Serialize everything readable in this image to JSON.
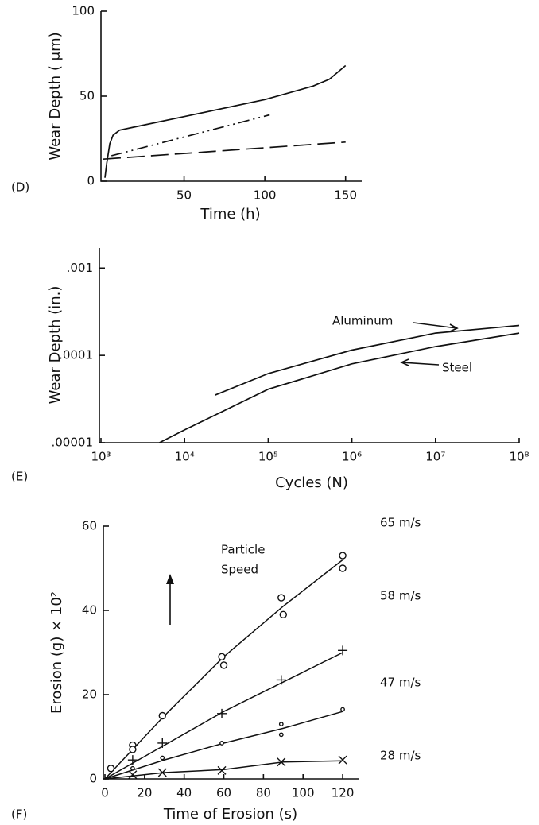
{
  "chart_data": [
    {
      "type": "line",
      "panel_label": "(D)",
      "xlabel": "Time (h)",
      "ylabel": "Wear Depth ( μm)",
      "xlim": [
        0,
        160
      ],
      "ylim": [
        0,
        100
      ],
      "xticks": [
        50,
        100,
        150
      ],
      "yticks": [
        0,
        50,
        100
      ],
      "color": "#111",
      "series": [
        {
          "dash": "solid",
          "x": [
            1,
            2,
            4,
            6,
            10,
            20,
            50,
            100,
            130,
            140,
            150
          ],
          "values": [
            2,
            10,
            22,
            27,
            30,
            32,
            38,
            48,
            56,
            60,
            68
          ]
        },
        {
          "dash": "dashdot",
          "x": [
            5,
            50,
            103
          ],
          "values": [
            15,
            26,
            39
          ]
        },
        {
          "dash": "dashed",
          "x": [
            0,
            150
          ],
          "values": [
            13,
            23
          ]
        }
      ]
    },
    {
      "type": "line",
      "panel_label": "(E)",
      "xlabel": "Cycles (N)",
      "ylabel": "Wear Depth (in.)",
      "xlog": true,
      "ylog": true,
      "xlim": [
        1000,
        100000000
      ],
      "ylim": [
        1e-05,
        0.0017
      ],
      "color": "#111",
      "xticks": [
        {
          "value": 1000,
          "label": "10³"
        },
        {
          "value": 10000,
          "label": "10⁴"
        },
        {
          "value": 100000,
          "label": "10⁵"
        },
        {
          "value": 1000000,
          "label": "10⁶"
        },
        {
          "value": 10000000,
          "label": "10⁷"
        },
        {
          "value": 100000000,
          "label": "10⁸"
        }
      ],
      "yticks": [
        {
          "value": 1e-05,
          "label": ".00001"
        },
        {
          "value": 0.0001,
          "label": ".0001"
        },
        {
          "value": 0.001,
          "label": ".001"
        }
      ],
      "series": [
        {
          "name": "Aluminum",
          "dash": "solid",
          "x": [
            23000,
            100000,
            1000000,
            10000000,
            100000000
          ],
          "values": [
            3.5e-05,
            6.2e-05,
            0.000115,
            0.00018,
            0.00022
          ]
        },
        {
          "name": "Steel",
          "dash": "solid",
          "x": [
            5000,
            10000,
            100000,
            1000000,
            10000000,
            100000000
          ],
          "values": [
            1e-05,
            1.4e-05,
            4.1e-05,
            8e-05,
            0.000126,
            0.00018
          ]
        }
      ]
    },
    {
      "type": "scatter",
      "panel_label": "(F)",
      "xlabel": "Time of Erosion (s)",
      "ylabel": "Erosion  (g) × 10²",
      "annotations": [
        "Particle",
        "Speed"
      ],
      "color": "#111",
      "xlim": [
        0,
        128
      ],
      "ylim": [
        0,
        60
      ],
      "xticks": [
        0,
        20,
        40,
        60,
        80,
        100,
        120
      ],
      "yticks": [
        0,
        20,
        40,
        60
      ],
      "series": [
        {
          "name": "65 m/s",
          "marker": "circle",
          "x": [
            3,
            14,
            14,
            29,
            59,
            60,
            89,
            90,
            120,
            120
          ],
          "values": [
            2.5,
            8,
            7,
            15,
            29,
            27,
            43,
            39,
            53,
            50
          ],
          "fit_x": [
            0,
            30,
            60,
            90,
            120
          ],
          "fit_values": [
            0,
            15,
            29,
            41,
            52
          ]
        },
        {
          "name": "58 m/s",
          "marker": "plus",
          "x": [
            14,
            29,
            59,
            89,
            120
          ],
          "values": [
            4.5,
            8.5,
            15.5,
            23.5,
            30.5
          ],
          "fit_x": [
            0,
            30,
            60,
            90,
            120
          ],
          "fit_values": [
            0,
            8,
            16,
            23,
            30
          ]
        },
        {
          "name": "47 m/s",
          "marker": "smallcircle",
          "x": [
            14,
            29,
            59,
            89,
            89,
            120
          ],
          "values": [
            2.5,
            5,
            8.5,
            13,
            10.5,
            16.5
          ],
          "fit_x": [
            0,
            30,
            60,
            90,
            120
          ],
          "fit_values": [
            0,
            4.5,
            8.5,
            12,
            16
          ]
        },
        {
          "name": "28 m/s",
          "marker": "cross",
          "x": [
            14,
            29,
            59,
            89,
            120
          ],
          "values": [
            1,
            1.5,
            2,
            4,
            4.5
          ],
          "fit_x": [
            0,
            30,
            60,
            90,
            120
          ],
          "fit_values": [
            0,
            1.5,
            2.2,
            4,
            4.3
          ]
        }
      ]
    }
  ]
}
